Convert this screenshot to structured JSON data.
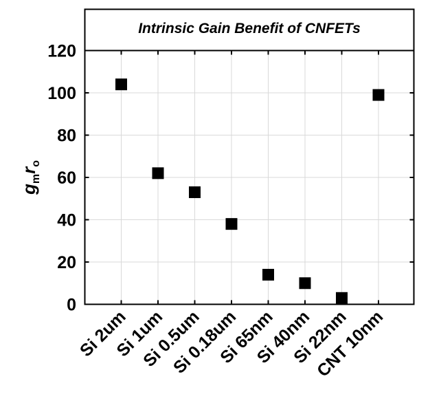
{
  "chart_data": {
    "type": "scatter",
    "title": "Intrinsic Gain Benefit of CNFETs",
    "ylabel": {
      "main1": "g",
      "sub1": "m",
      "main2": "r",
      "sub2": "o"
    },
    "xlabel": "",
    "categories": [
      "Si 2um",
      "Si 1um",
      "Si 0.5um",
      "Si 0.18um",
      "Si 65nm",
      "Si 40nm",
      "Si 22nm",
      "CNT 10nm"
    ],
    "values": [
      104,
      62,
      53,
      38,
      14,
      10,
      3,
      99
    ],
    "ylim": [
      0,
      120
    ],
    "yticks": [
      "0",
      "20",
      "40",
      "60",
      "80",
      "100",
      "120"
    ],
    "grid": true,
    "marker": "square",
    "marker_color": "#000000"
  }
}
